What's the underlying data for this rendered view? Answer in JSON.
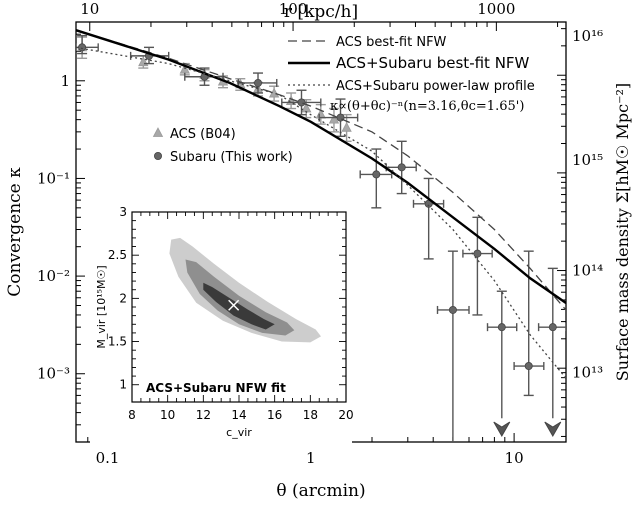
{
  "chart_data": [
    {
      "type": "scatter",
      "scale": "log-log",
      "xlabel": "θ (arcmin)",
      "ylabel": "Convergence κ",
      "top_axis_label": "r [kpc/h]",
      "right_axis_label": "Surface mass density Σ[hM☉ Mpc⁻²]",
      "xlim": [
        0.07,
        18
      ],
      "ylim": [
        0.0002,
        4
      ],
      "x_ticks": [
        {
          "v": 0.1,
          "label": "0.1"
        },
        {
          "v": 1,
          "label": "1"
        },
        {
          "v": 10,
          "label": "10"
        }
      ],
      "y_ticks": [
        {
          "v": 0.001,
          "label": "10⁻³"
        },
        {
          "v": 0.01,
          "label": "10⁻²"
        },
        {
          "v": 0.1,
          "label": "10⁻¹"
        },
        {
          "v": 1,
          "label": "1"
        }
      ],
      "top_ticks": [
        {
          "v": 0.0818,
          "label": "10"
        },
        {
          "v": 0.818,
          "label": "100"
        },
        {
          "v": 8.18,
          "label": "1000"
        }
      ],
      "right_ticks": [
        {
          "v": 0.00103,
          "label": "10¹³"
        },
        {
          "v": 0.0114,
          "label": "10¹⁴"
        },
        {
          "v": 0.154,
          "label": "10¹⁵"
        },
        {
          "v": 2.87,
          "label": "10¹⁶"
        }
      ],
      "legend_position": "top-right",
      "series": [
        {
          "name": "ACS best-fit NFW",
          "kind": "line",
          "style": "dashed",
          "points": [
            [
              0.07,
              3.3
            ],
            [
              0.2,
              1.7
            ],
            [
              0.4,
              1.05
            ],
            [
              0.7,
              0.72
            ],
            [
              1,
              0.55
            ],
            [
              2,
              0.3
            ],
            [
              3,
              0.17
            ],
            [
              5,
              0.072
            ],
            [
              8,
              0.03
            ],
            [
              12,
              0.012
            ],
            [
              18,
              0.0045
            ]
          ]
        },
        {
          "name": "ACS+Subaru best-fit NFW",
          "kind": "line",
          "style": "solid",
          "points": [
            [
              0.07,
              3.3
            ],
            [
              0.2,
              1.65
            ],
            [
              0.4,
              0.95
            ],
            [
              0.7,
              0.55
            ],
            [
              1,
              0.38
            ],
            [
              2,
              0.16
            ],
            [
              3,
              0.09
            ],
            [
              5,
              0.04
            ],
            [
              8,
              0.019
            ],
            [
              12,
              0.0095
            ],
            [
              18,
              0.0053
            ]
          ]
        },
        {
          "name": "ACS+Subaru power-law profile",
          "kind": "line",
          "style": "dotted",
          "formula": "κ∝(θ+θc)⁻ⁿ(n=3.16,θc=1.65')",
          "points": [
            [
              0.07,
              2.2
            ],
            [
              0.2,
              1.5
            ],
            [
              0.4,
              1.0
            ],
            [
              0.7,
              0.72
            ],
            [
              1,
              0.45
            ],
            [
              2,
              0.19
            ],
            [
              3,
              0.085
            ],
            [
              5,
              0.03
            ],
            [
              8,
              0.009
            ],
            [
              12,
              0.0025
            ],
            [
              18,
              0.0009
            ]
          ]
        },
        {
          "name": "ACS (B04)",
          "kind": "points",
          "marker": "triangle",
          "points": [
            {
              "x": 0.075,
              "y": 2.2,
              "ylo": 1.7,
              "yhi": 2.8
            },
            {
              "x": 0.15,
              "y": 1.55,
              "ylo": 1.35,
              "yhi": 1.8
            },
            {
              "x": 0.24,
              "y": 1.3,
              "ylo": 1.15,
              "yhi": 1.5
            },
            {
              "x": 0.3,
              "y": 1.15,
              "ylo": 1.0,
              "yhi": 1.3
            },
            {
              "x": 0.37,
              "y": 0.98,
              "ylo": 0.85,
              "yhi": 1.12
            },
            {
              "x": 0.45,
              "y": 0.92,
              "ylo": 0.8,
              "yhi": 1.05
            },
            {
              "x": 0.55,
              "y": 0.82,
              "ylo": 0.7,
              "yhi": 0.96
            },
            {
              "x": 0.66,
              "y": 0.74,
              "ylo": 0.62,
              "yhi": 0.88
            },
            {
              "x": 0.8,
              "y": 0.62,
              "ylo": 0.52,
              "yhi": 0.75
            },
            {
              "x": 0.95,
              "y": 0.52,
              "ylo": 0.42,
              "yhi": 0.64
            },
            {
              "x": 1.12,
              "y": 0.45,
              "ylo": 0.36,
              "yhi": 0.57
            },
            {
              "x": 1.3,
              "y": 0.4,
              "ylo": 0.3,
              "yhi": 0.52
            },
            {
              "x": 1.5,
              "y": 0.33,
              "ylo": 0.24,
              "yhi": 0.45
            }
          ]
        },
        {
          "name": "Subaru (This work)",
          "kind": "points",
          "marker": "circle",
          "points": [
            {
              "x": 0.075,
              "y": 2.2,
              "xlo": 0.068,
              "xhi": 0.09,
              "ylo": 1.9,
              "yhi": 2.9
            },
            {
              "x": 0.16,
              "y": 1.8,
              "xlo": 0.13,
              "xhi": 0.2,
              "ylo": 1.5,
              "yhi": 2.2
            },
            {
              "x": 0.3,
              "y": 1.1,
              "xlo": 0.24,
              "xhi": 0.37,
              "ylo": 0.9,
              "yhi": 1.35
            },
            {
              "x": 0.55,
              "y": 0.95,
              "xlo": 0.44,
              "xhi": 0.68,
              "ylo": 0.75,
              "yhi": 1.2
            },
            {
              "x": 0.9,
              "y": 0.6,
              "xlo": 0.72,
              "xhi": 1.12,
              "ylo": 0.45,
              "yhi": 0.8
            },
            {
              "x": 1.4,
              "y": 0.42,
              "xlo": 1.1,
              "xhi": 1.7,
              "ylo": 0.27,
              "yhi": 0.65
            },
            {
              "x": 2.1,
              "y": 0.11,
              "xlo": 1.75,
              "xhi": 2.5,
              "ylo": 0.05,
              "yhi": 0.2
            },
            {
              "x": 2.8,
              "y": 0.13,
              "xlo": 2.35,
              "xhi": 3.3,
              "ylo": 0.07,
              "yhi": 0.24
            },
            {
              "x": 3.8,
              "y": 0.055,
              "xlo": 3.2,
              "xhi": 4.5,
              "ylo": 0.015,
              "yhi": 0.1
            },
            {
              "x": 5.0,
              "y": 0.0045,
              "xlo": 4.2,
              "xhi": 6.0,
              "ylo": 0.0002,
              "yhi": 0.018
            },
            {
              "x": 6.6,
              "y": 0.017,
              "xlo": 5.6,
              "xhi": 7.8,
              "ylo": 0.004,
              "yhi": 0.04
            },
            {
              "x": 8.7,
              "y": 0.003,
              "xlo": 7.4,
              "xhi": 10.3,
              "ylo": 0.00035,
              "yhi": 0.007,
              "upper_limit": true
            },
            {
              "x": 11.8,
              "y": 0.0012,
              "xlo": 10.0,
              "xhi": 14.0,
              "ylo": 0.0006,
              "yhi": 0.018
            },
            {
              "x": 15.5,
              "y": 0.003,
              "xlo": 13.2,
              "xhi": 18.0,
              "ylo": 0.00035,
              "yhi": 0.012,
              "upper_limit": true
            }
          ]
        }
      ]
    },
    {
      "type": "contour",
      "title": "ACS+Subaru NFW fit",
      "xlabel": "c_vir",
      "ylabel": "M_vir [10¹⁵M☉]",
      "xlim": [
        8,
        20
      ],
      "ylim": [
        0.8,
        3.0
      ],
      "x_ticks": [
        8,
        10,
        12,
        14,
        16,
        18,
        20
      ],
      "y_ticks": [
        1,
        1.5,
        2,
        2.5,
        3
      ],
      "best_fit": {
        "x": 13.7,
        "y": 1.92
      },
      "levels": [
        {
          "level": 1,
          "color": "#3a3a3a",
          "points": [
            [
              12.0,
              2.18
            ],
            [
              12.5,
              2.13
            ],
            [
              13.5,
              2.0
            ],
            [
              14.5,
              1.87
            ],
            [
              15.4,
              1.76
            ],
            [
              16.0,
              1.7
            ],
            [
              15.5,
              1.64
            ],
            [
              14.7,
              1.7
            ],
            [
              13.7,
              1.8
            ],
            [
              12.7,
              1.96
            ],
            [
              12.0,
              2.1
            ]
          ]
        },
        {
          "level": 2,
          "color": "#8f8f8f",
          "points": [
            [
              11.0,
              2.45
            ],
            [
              11.6,
              2.42
            ],
            [
              12.6,
              2.25
            ],
            [
              14.0,
              2.03
            ],
            [
              15.5,
              1.84
            ],
            [
              16.7,
              1.72
            ],
            [
              17.1,
              1.63
            ],
            [
              16.6,
              1.57
            ],
            [
              15.3,
              1.6
            ],
            [
              14.0,
              1.7
            ],
            [
              12.8,
              1.86
            ],
            [
              11.8,
              2.05
            ],
            [
              11.1,
              2.3
            ]
          ]
        },
        {
          "level": 3,
          "color": "#cdcdcd",
          "points": [
            [
              10.2,
              2.68
            ],
            [
              10.7,
              2.7
            ],
            [
              11.4,
              2.6
            ],
            [
              12.6,
              2.4
            ],
            [
              14.0,
              2.18
            ],
            [
              15.6,
              1.96
            ],
            [
              17.2,
              1.76
            ],
            [
              18.3,
              1.64
            ],
            [
              18.6,
              1.56
            ],
            [
              18.0,
              1.49
            ],
            [
              16.4,
              1.5
            ],
            [
              14.7,
              1.6
            ],
            [
              13.1,
              1.74
            ],
            [
              11.6,
              1.95
            ],
            [
              10.6,
              2.25
            ],
            [
              10.1,
              2.52
            ]
          ]
        }
      ]
    }
  ]
}
